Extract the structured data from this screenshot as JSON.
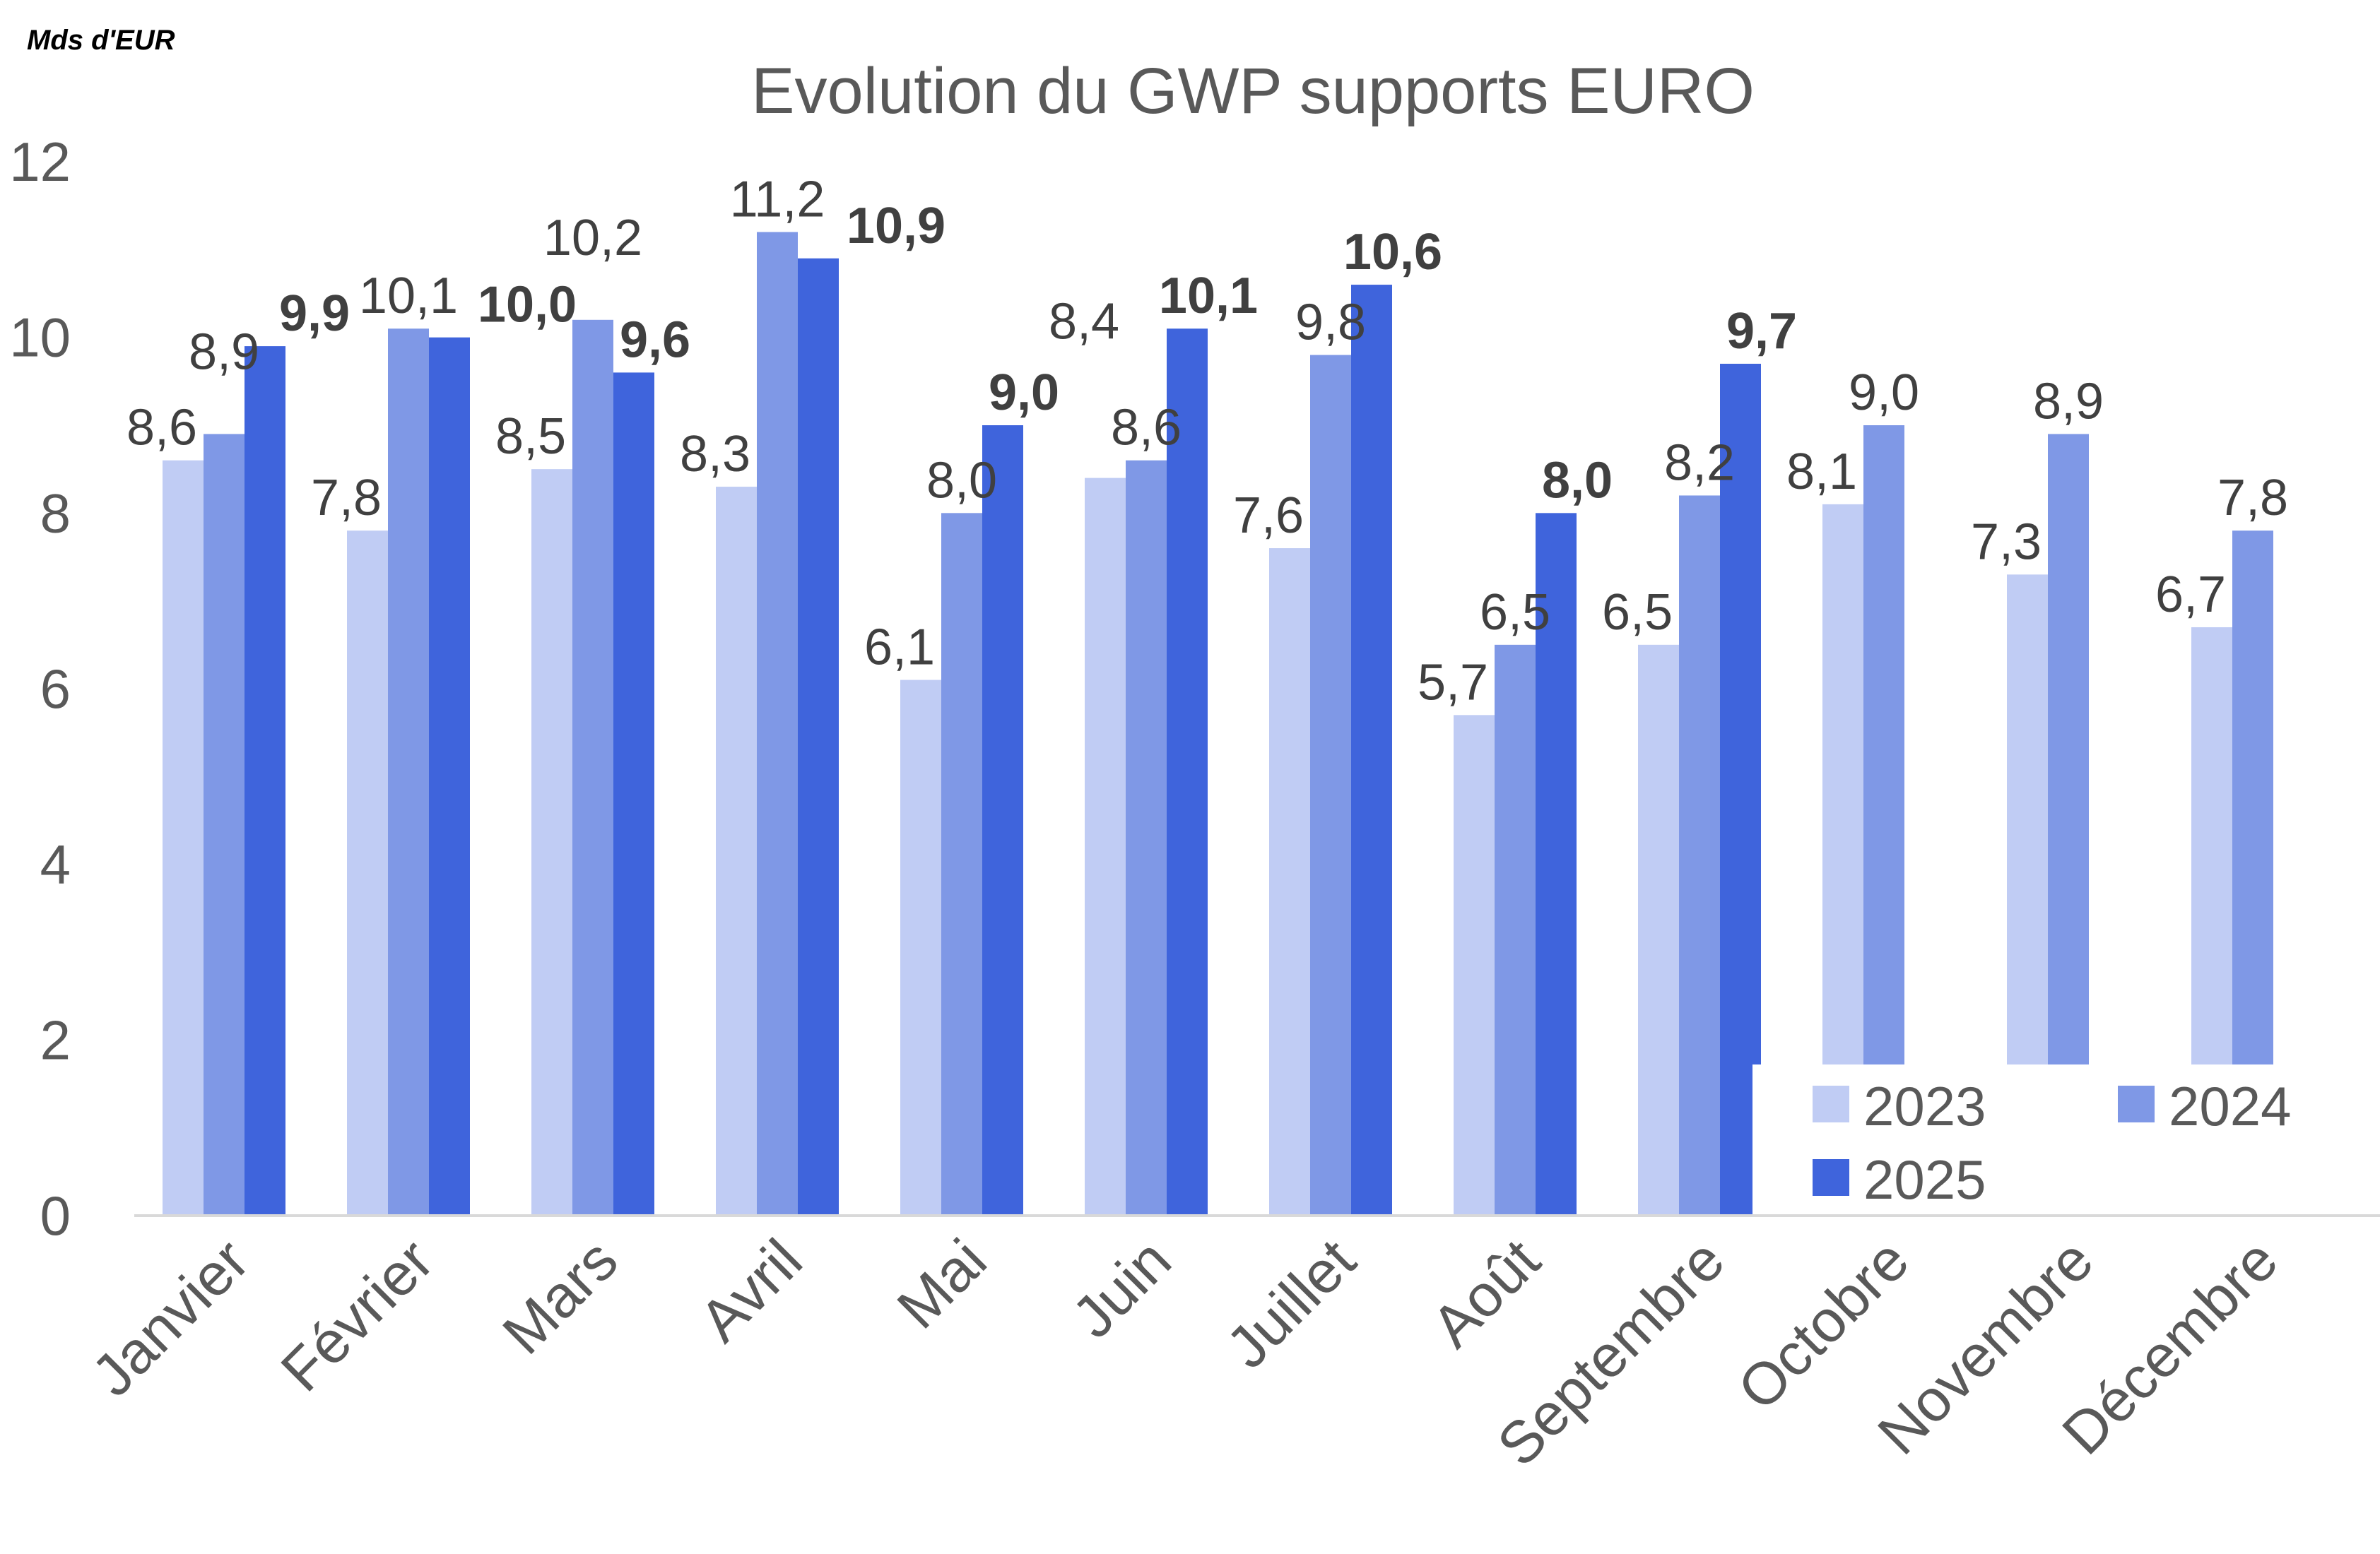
{
  "chart_data": {
    "type": "bar",
    "title": "Evolution du GWP supports EURO",
    "unit_label": "Mds d'EUR",
    "categories": [
      "Janvier",
      "Février",
      "Mars",
      "Avril",
      "Mai",
      "Juin",
      "Juillet",
      "Août",
      "Septembre",
      "Octobre",
      "Novembre",
      "Décembre"
    ],
    "series": [
      {
        "name": "2023",
        "color": "#C0CCF4",
        "values": [
          8.6,
          7.8,
          8.5,
          8.3,
          6.1,
          8.4,
          7.6,
          5.7,
          6.5,
          8.1,
          7.3,
          6.7
        ],
        "labels": [
          "8,6",
          "7,8",
          "8,5",
          "8,3",
          "6,1",
          "8,4",
          "7,6",
          "5,7",
          "6,5",
          "8,1",
          "7,3",
          "6,7"
        ]
      },
      {
        "name": "2024",
        "color": "#7F98E6",
        "values": [
          8.9,
          10.1,
          10.2,
          11.2,
          8.0,
          8.6,
          9.8,
          6.5,
          8.2,
          9.0,
          8.9,
          7.8
        ],
        "labels": [
          "8,9",
          "10,1",
          "10,2",
          "11,2",
          "8,0",
          "8,6",
          "9,8",
          "6,5",
          "8,2",
          "9,0",
          "8,9",
          "7,8"
        ]
      },
      {
        "name": "2025",
        "color": "#3F64DC",
        "values": [
          9.9,
          10.0,
          9.6,
          10.9,
          9.0,
          10.1,
          10.6,
          8.0,
          9.7,
          null,
          null,
          null
        ],
        "labels": [
          "9,9",
          "10,0",
          "9,6",
          "10,9",
          "9,0",
          "10,1",
          "10,6",
          "8,0",
          "9,7",
          null,
          null,
          null
        ]
      }
    ],
    "yticks": [
      "0",
      "2",
      "4",
      "6",
      "8",
      "10",
      "12"
    ],
    "ylim": [
      0,
      12
    ],
    "grid": false,
    "legend": "bottom-right"
  }
}
